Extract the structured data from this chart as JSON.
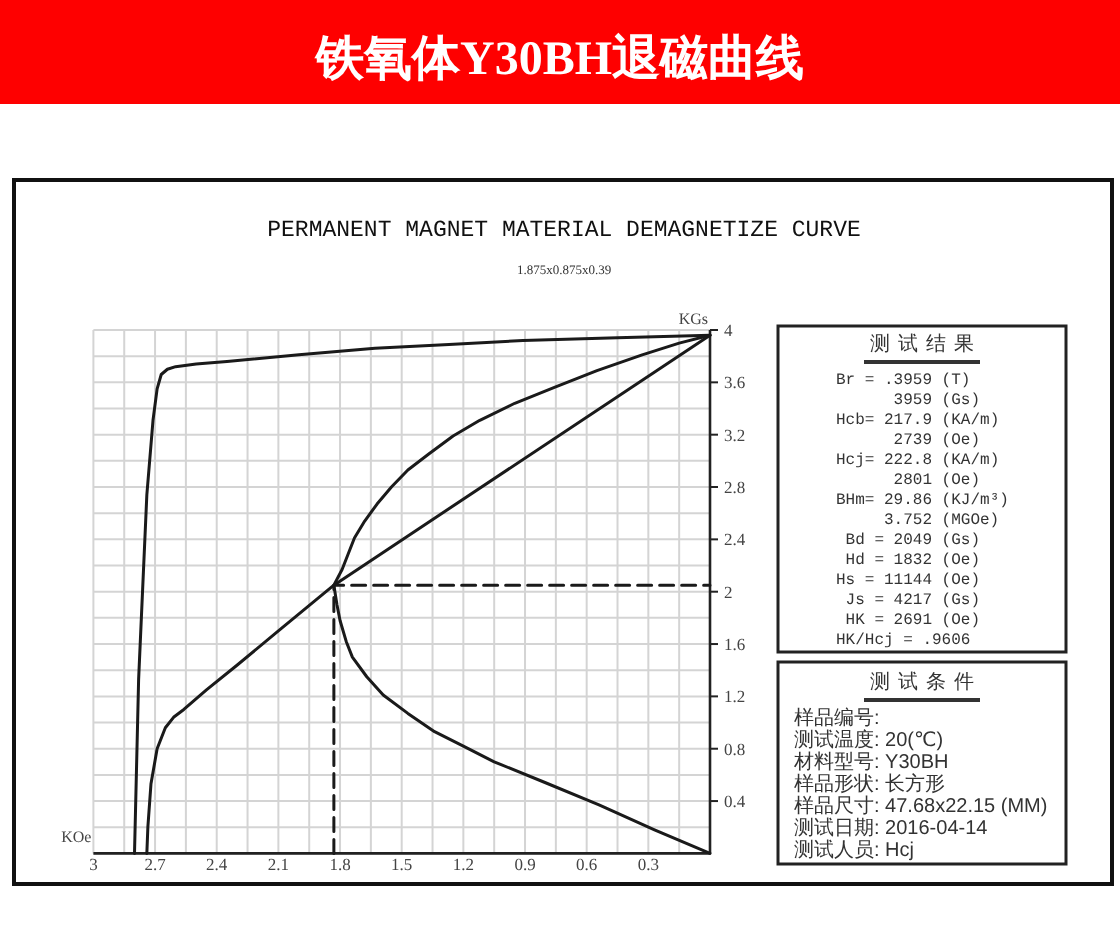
{
  "chart_data": [
    {
      "type": "line",
      "title": "铁氧体Y30BH退磁曲线",
      "subtitle": "PERMANENT MAGNET MATERIAL DEMAGNETIZE CURVE",
      "annotations": [
        "1.875x0.875x0.39"
      ],
      "xlabel": "KOe",
      "ylabel": "KGs",
      "xlim": [
        3,
        0
      ],
      "ylim": [
        0,
        4
      ],
      "xticks": [
        3,
        {
          "value": 2.85,
          "label": null
        },
        2.7,
        {
          "value": 2.55,
          "label": null
        },
        2.4,
        {
          "value": 2.25,
          "label": null
        },
        2.1,
        {
          "value": 1.95,
          "label": null
        },
        1.8,
        {
          "value": 1.65,
          "label": null
        },
        1.5,
        {
          "value": 1.35,
          "label": null
        },
        1.2,
        {
          "value": 1.05,
          "label": null
        },
        0.9,
        {
          "value": 0.75,
          "label": null
        },
        0.6,
        {
          "value": 0.45,
          "label": null
        },
        0.3,
        {
          "value": 0.15,
          "label": null
        },
        {
          "value": 0,
          "label": null
        }
      ],
      "yticks": [
        {
          "value": 0,
          "label": null
        },
        {
          "value": 0.2,
          "label": null
        },
        0.4,
        {
          "value": 0.6,
          "label": null
        },
        0.8,
        {
          "value": 1,
          "label": null
        },
        1.2,
        {
          "value": 1.4,
          "label": null
        },
        1.6,
        {
          "value": 1.8,
          "label": null
        },
        2,
        {
          "value": 2.2,
          "label": null
        },
        2.4,
        {
          "value": 2.6,
          "label": null
        },
        2.8,
        {
          "value": 3,
          "label": null
        },
        3.2,
        {
          "value": 3.4,
          "label": null
        },
        3.6,
        {
          "value": 3.8,
          "label": null
        },
        4
      ],
      "grid": true,
      "series": [
        {
          "color": "#1a1a1a",
          "x": [
            0,
            0.45,
            0.91,
            1.27,
            1.63,
            2.0,
            2.35,
            2.5,
            2.6,
            2.64,
            2.67,
            2.69,
            2.71,
            2.74,
            2.78,
            2.8
          ],
          "values": [
            3.96,
            3.94,
            3.92,
            3.89,
            3.86,
            3.81,
            3.76,
            3.74,
            3.72,
            3.7,
            3.66,
            3.55,
            3.31,
            2.74,
            1.33,
            0
          ]
        },
        {
          "color": "#1a1a1a",
          "x": [
            0,
            1.83,
            2.1,
            2.3,
            2.45,
            2.56,
            2.61,
            2.65,
            2.69,
            2.72,
            2.735,
            2.74
          ],
          "values": [
            3.96,
            2.05,
            1.7,
            1.44,
            1.25,
            1.1,
            1.04,
            0.96,
            0.8,
            0.53,
            0.2,
            0
          ]
        },
        {
          "color": "#1a1a1a",
          "x": [
            0,
            0.15,
            0.33,
            0.55,
            0.76,
            0.95,
            1.12,
            1.25,
            1.37,
            1.47,
            1.55,
            1.62,
            1.68,
            1.73,
            1.76,
            1.79,
            1.83,
            1.815,
            1.8,
            1.77,
            1.74,
            1.67,
            1.59,
            1.47,
            1.34,
            1.2,
            1.05,
            0.8,
            0.54,
            0.27,
            0
          ],
          "values": [
            3.96,
            3.9,
            3.81,
            3.69,
            3.56,
            3.44,
            3.31,
            3.19,
            3.05,
            2.93,
            2.8,
            2.67,
            2.54,
            2.41,
            2.29,
            2.17,
            2.05,
            1.9,
            1.78,
            1.62,
            1.5,
            1.35,
            1.21,
            1.07,
            0.93,
            0.82,
            0.7,
            0.54,
            0.37,
            0.18,
            0
          ]
        },
        {
          "color": "#1a1a1a",
          "line_style": "dashed",
          "x": [
            1.83,
            1.83,
            0
          ],
          "values": [
            0,
            2.05,
            2.05
          ]
        }
      ]
    },
    {
      "type": "other",
      "title": "测试结果",
      "annotations": [
        "Br = .3959 (T)",
        "3959 (Gs)",
        "Hcb= 217.9 (KA/m)",
        "2739 (Oe)",
        "Hcj= 222.8 (KA/m)",
        "2801 (Oe)",
        "BHm= 29.86 (KJ/m³)",
        "3.752 (MGOe)",
        "Bd = 2049 (Gs)",
        "Hd = 1832 (Oe)",
        "Hs = 11144 (Oe)",
        "Js = 4217 (Gs)",
        "HK = 2691 (Oe)",
        "HK/Hcj = .9606"
      ]
    },
    {
      "type": "other",
      "title": "测试条件",
      "annotations": [
        "样品编号:",
        "测试温度: 20(℃)",
        "材料型号: Y30BH",
        "样品形状: 长方形",
        "样品尺寸: 47.68x22.15 (MM)",
        "测试日期: 2016-04-14",
        "测试人员: Hcj"
      ]
    }
  ]
}
